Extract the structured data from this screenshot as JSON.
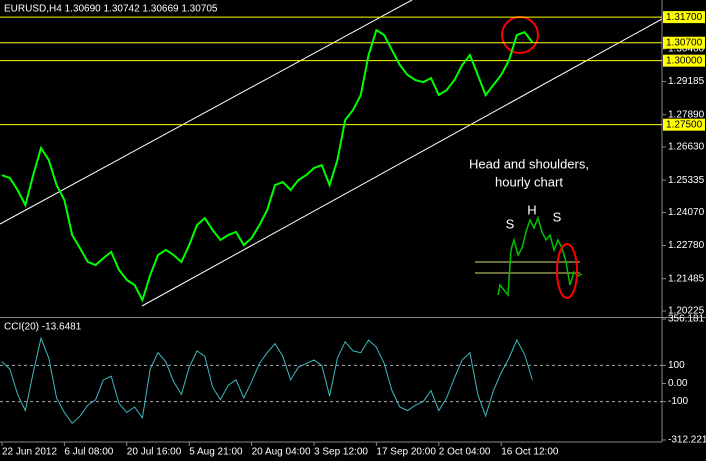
{
  "chart_data": [
    {
      "type": "line",
      "title": "EURUSD,H4  1.30690 1.30742 1.30669 1.30705",
      "color": "#00ff00",
      "categories": [
        "22 Jun 2012",
        null,
        null,
        null,
        null,
        null,
        null,
        null,
        "6 Jul 08:00",
        null,
        null,
        null,
        null,
        null,
        null,
        null,
        "20 Jul 16:00",
        null,
        null,
        null,
        null,
        null,
        null,
        null,
        "5 Aug 21:00",
        null,
        null,
        null,
        null,
        null,
        null,
        null,
        "20 Aug 04:00",
        null,
        null,
        null,
        null,
        null,
        null,
        null,
        "3 Sep 12:00",
        null,
        null,
        null,
        null,
        null,
        null,
        null,
        "17 Sep 20:00",
        null,
        null,
        null,
        null,
        null,
        null,
        null,
        "2 Oct 04:00",
        null,
        null,
        null,
        null,
        null,
        null,
        null,
        "16 Oct 12:00",
        null,
        null,
        null,
        null
      ],
      "values": [
        1.2553,
        1.2542,
        1.2495,
        1.2436,
        1.2553,
        1.2659,
        1.2612,
        1.2514,
        1.2456,
        1.2319,
        1.2268,
        1.2214,
        1.2202,
        1.2229,
        1.2253,
        1.2183,
        1.2144,
        1.2124,
        1.2065,
        1.2163,
        1.2241,
        1.2261,
        1.2241,
        1.2214,
        1.228,
        1.2358,
        1.2385,
        1.2339,
        1.23,
        1.2319,
        1.2331,
        1.228,
        1.2307,
        1.2358,
        1.2417,
        1.2514,
        1.2526,
        1.2495,
        1.2534,
        1.2553,
        1.2581,
        1.2592,
        1.2514,
        1.2612,
        1.2768,
        1.2807,
        1.2866,
        1.3022,
        1.3119,
        1.31,
        1.3041,
        1.2983,
        1.2944,
        1.2924,
        1.2916,
        1.2932,
        1.2866,
        1.2885,
        1.2924,
        1.2983,
        1.3022,
        1.2944,
        1.2866,
        1.2905,
        1.2944,
        1.3002,
        1.31,
        1.3111,
        1.3072
      ],
      "ylim": [
        1.2003,
        1.3229
      ],
      "yticks": [
        {
          "value": 1.3046,
          "label": "1.30460"
        },
        1.29185,
        {
          "value": 1.2789,
          "label": "1.27890"
        },
        {
          "value": 1.2663,
          "label": "1.26630"
        },
        1.25335,
        {
          "value": 1.2407,
          "label": "1.24070"
        },
        {
          "value": 1.2278,
          "label": "1.22780"
        },
        1.21485,
        1.20225
      ],
      "levels": [
        {
          "value": 1.317,
          "label": "1.31700"
        },
        {
          "value": 1.307,
          "label": "1.30700"
        },
        {
          "value": 1.3,
          "label": "1.30000"
        },
        {
          "value": 1.275,
          "label": "1.27500"
        }
      ],
      "level_color": "#ffff00",
      "annotations": [
        "Head and shoulders,",
        "hourly chart",
        "S",
        "H",
        "S"
      ]
    },
    {
      "type": "line",
      "title": "CCI(20) -13.6481",
      "color": "#3fb7c0",
      "values": [
        120,
        80,
        -60,
        -150,
        60,
        250,
        140,
        -80,
        -160,
        -220,
        -180,
        -120,
        -90,
        20,
        40,
        -110,
        -160,
        -130,
        -190,
        80,
        170,
        120,
        10,
        -60,
        90,
        180,
        150,
        -20,
        -90,
        -10,
        20,
        -80,
        10,
        110,
        170,
        220,
        150,
        20,
        90,
        110,
        130,
        100,
        -70,
        140,
        230,
        180,
        170,
        240,
        200,
        110,
        -40,
        -130,
        -150,
        -120,
        -100,
        -40,
        -150,
        -80,
        30,
        130,
        170,
        -60,
        -180,
        -40,
        60,
        140,
        240,
        160,
        20
      ],
      "ylim": [
        -312.221,
        356.181
      ],
      "yticks": [
        356.181,
        100,
        {
          "value": 0,
          "label": "0.00"
        },
        -100,
        -312.221
      ],
      "levels": [
        100,
        -100
      ]
    }
  ]
}
